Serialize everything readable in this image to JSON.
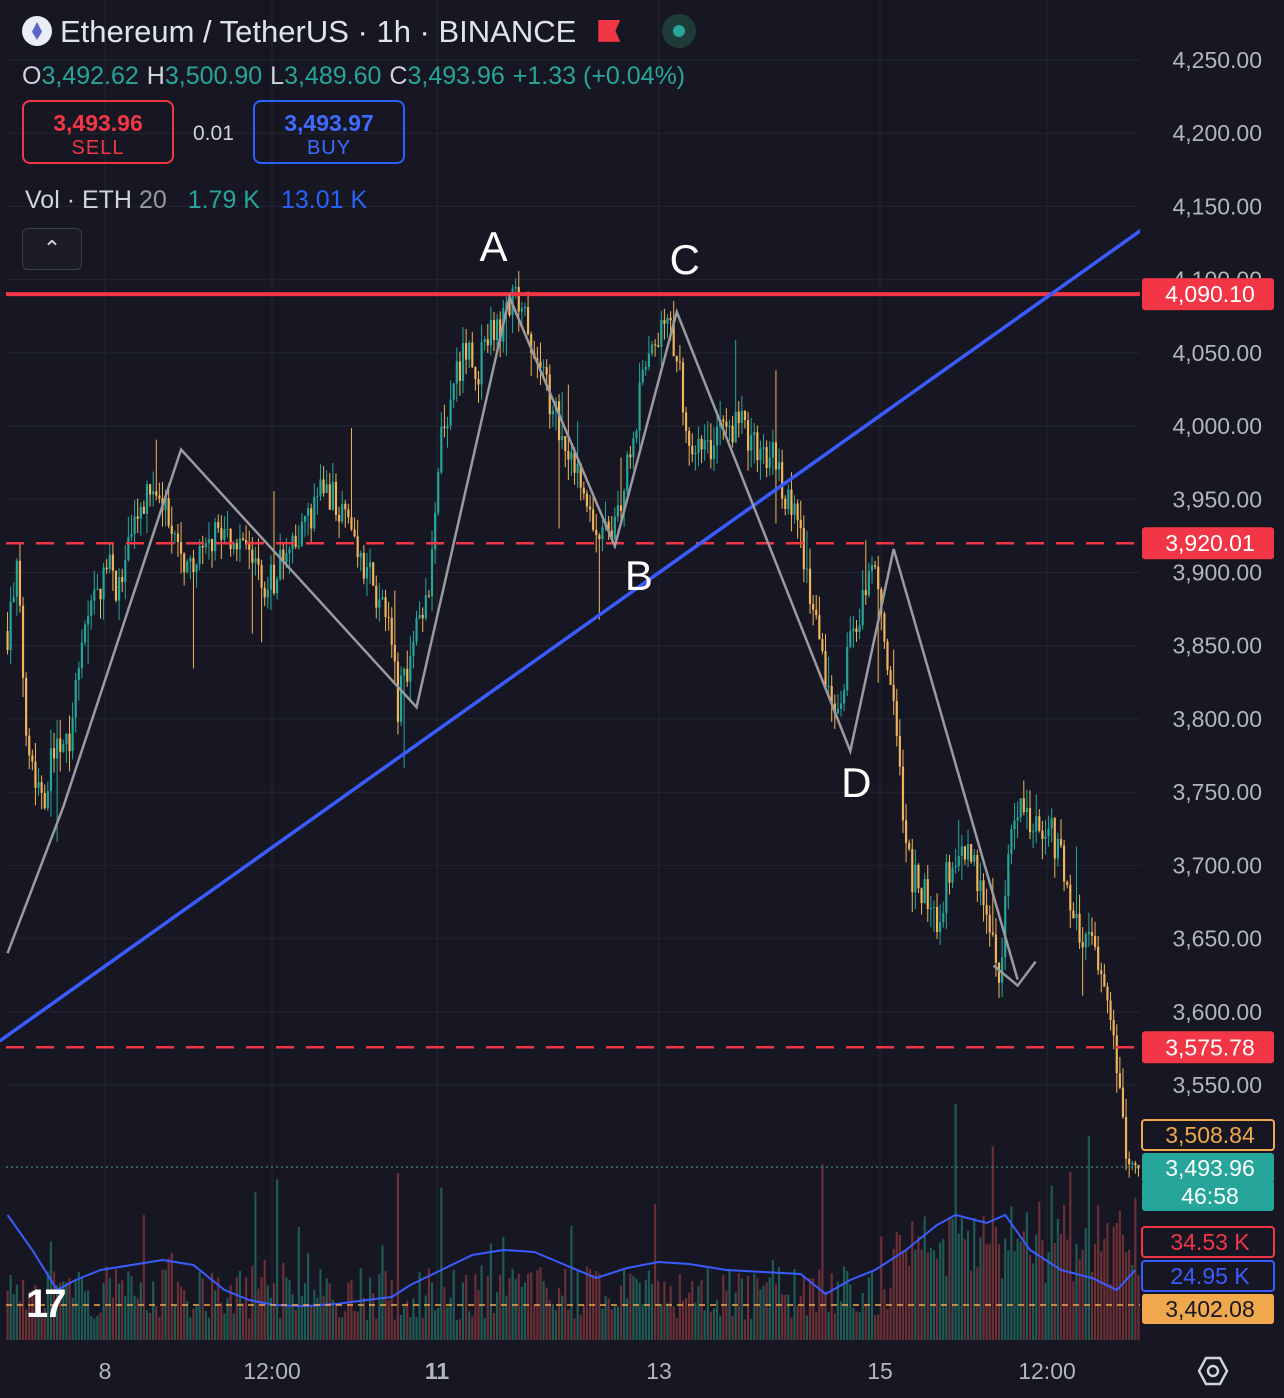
{
  "header": {
    "symbol_title": "Ethereum / TetherUS · 1h · BINANCE",
    "ohlc": {
      "o_label": "O",
      "o": "3,492.62",
      "h_label": "H",
      "h": "3,500.90",
      "l_label": "L",
      "l": "3,489.60",
      "c_label": "C",
      "c": "3,493.96",
      "change": "+1.33 (+0.04%)"
    },
    "sell": {
      "price": "3,493.96",
      "label": "SELL"
    },
    "spread": "0.01",
    "buy": {
      "price": "3,493.97",
      "label": "BUY"
    },
    "volume_legend": {
      "label": "Vol · ETH",
      "length": "20",
      "vol": "1.79 K",
      "ma": "13.01 K"
    },
    "collapse_icon": "chevron-up-icon",
    "brand_logo": "tradingview-logo-icon",
    "settings_icon": "gear-icon"
  },
  "colors": {
    "background": "#161722",
    "bull": "#26a69a",
    "bear": "#f0b45a",
    "resistance": "#f23645",
    "trendline": "#3a5cff",
    "pattern": "#9a9aa0",
    "volume_ma": "#3a5cff",
    "pattern_label": "#ffffff"
  },
  "chart_data": {
    "type": "candlestick",
    "title": "Ethereum / TetherUS · 1h · BINANCE",
    "x_ticks": [
      "8",
      "12:00",
      "11",
      "13",
      "15",
      "12:00"
    ],
    "y_ticks": [
      "3,550.00",
      "3,600.00",
      "3,650.00",
      "3,700.00",
      "3,750.00",
      "3,800.00",
      "3,850.00",
      "3,900.00",
      "3,950.00",
      "4,000.00",
      "4,050.00",
      "4,100.00",
      "4,150.00",
      "4,200.00",
      "4,250.00"
    ],
    "ylim": [
      3390,
      4265
    ],
    "grid": true,
    "price_path": [
      [
        0,
        3860
      ],
      [
        3,
        3900
      ],
      [
        6,
        3800
      ],
      [
        9,
        3760
      ],
      [
        12,
        3750
      ],
      [
        16,
        3790
      ],
      [
        20,
        3790
      ],
      [
        24,
        3860
      ],
      [
        28,
        3880
      ],
      [
        32,
        3905
      ],
      [
        36,
        3890
      ],
      [
        40,
        3920
      ],
      [
        44,
        3950
      ],
      [
        48,
        3950
      ],
      [
        52,
        3940
      ],
      [
        56,
        3910
      ],
      [
        60,
        3905
      ],
      [
        64,
        3915
      ],
      [
        68,
        3930
      ],
      [
        72,
        3925
      ],
      [
        76,
        3910
      ],
      [
        80,
        3905
      ],
      [
        84,
        3890
      ],
      [
        88,
        3905
      ],
      [
        92,
        3915
      ],
      [
        96,
        3930
      ],
      [
        100,
        3950
      ],
      [
        104,
        3955
      ],
      [
        108,
        3945
      ],
      [
        112,
        3920
      ],
      [
        116,
        3900
      ],
      [
        120,
        3880
      ],
      [
        124,
        3850
      ],
      [
        126,
        3810
      ],
      [
        128,
        3830
      ],
      [
        132,
        3860
      ],
      [
        136,
        3880
      ],
      [
        140,
        3990
      ],
      [
        144,
        4035
      ],
      [
        148,
        4050
      ],
      [
        152,
        4040
      ],
      [
        156,
        4060
      ],
      [
        160,
        4070
      ],
      [
        164,
        4085
      ],
      [
        168,
        4070
      ],
      [
        172,
        4040
      ],
      [
        176,
        4010
      ],
      [
        180,
        3990
      ],
      [
        184,
        3970
      ],
      [
        188,
        3940
      ],
      [
        192,
        3920
      ],
      [
        196,
        3930
      ],
      [
        200,
        3975
      ],
      [
        204,
        4020
      ],
      [
        208,
        4060
      ],
      [
        212,
        4070
      ],
      [
        216,
        4050
      ],
      [
        220,
        3990
      ],
      [
        224,
        3980
      ],
      [
        228,
        3990
      ],
      [
        232,
        4000
      ],
      [
        236,
        4000
      ],
      [
        240,
        3990
      ],
      [
        244,
        3985
      ],
      [
        248,
        3975
      ],
      [
        252,
        3950
      ],
      [
        256,
        3930
      ],
      [
        260,
        3870
      ],
      [
        264,
        3830
      ],
      [
        268,
        3800
      ],
      [
        272,
        3850
      ],
      [
        276,
        3880
      ],
      [
        280,
        3900
      ],
      [
        284,
        3840
      ],
      [
        288,
        3760
      ],
      [
        292,
        3690
      ],
      [
        296,
        3680
      ],
      [
        300,
        3660
      ],
      [
        304,
        3700
      ],
      [
        308,
        3710
      ],
      [
        312,
        3700
      ],
      [
        316,
        3660
      ],
      [
        320,
        3620
      ],
      [
        324,
        3720
      ],
      [
        328,
        3740
      ],
      [
        332,
        3730
      ],
      [
        336,
        3725
      ],
      [
        340,
        3710
      ],
      [
        344,
        3670
      ],
      [
        348,
        3650
      ],
      [
        352,
        3640
      ],
      [
        356,
        3600
      ],
      [
        358,
        3550
      ],
      [
        360,
        3530
      ],
      [
        362,
        3494
      ]
    ],
    "volume_ma_path": [
      [
        0,
        1215
      ],
      [
        8,
        1250
      ],
      [
        16,
        1290
      ],
      [
        22,
        1280
      ],
      [
        30,
        1270
      ],
      [
        40,
        1265
      ],
      [
        50,
        1260
      ],
      [
        60,
        1265
      ],
      [
        70,
        1290
      ],
      [
        78,
        1300
      ],
      [
        86,
        1305
      ],
      [
        96,
        1306
      ],
      [
        106,
        1304
      ],
      [
        116,
        1300
      ],
      [
        124,
        1297
      ],
      [
        130,
        1285
      ],
      [
        140,
        1270
      ],
      [
        150,
        1255
      ],
      [
        160,
        1250
      ],
      [
        170,
        1252
      ],
      [
        180,
        1265
      ],
      [
        190,
        1278
      ],
      [
        200,
        1268
      ],
      [
        210,
        1262
      ],
      [
        220,
        1264
      ],
      [
        232,
        1270
      ],
      [
        244,
        1272
      ],
      [
        256,
        1274
      ],
      [
        264,
        1294
      ],
      [
        272,
        1280
      ],
      [
        280,
        1270
      ],
      [
        290,
        1250
      ],
      [
        300,
        1225
      ],
      [
        306,
        1215
      ],
      [
        316,
        1223
      ],
      [
        322,
        1215
      ],
      [
        330,
        1250
      ],
      [
        340,
        1270
      ],
      [
        350,
        1278
      ],
      [
        358,
        1290
      ],
      [
        364,
        1270
      ]
    ],
    "levels": [
      {
        "price": 4090.1,
        "label": "4,090.10",
        "style": "solid",
        "color": "#f23645"
      },
      {
        "price": 3920.01,
        "label": "3,920.01",
        "style": "dashed",
        "color": "#f23645"
      },
      {
        "price": 3575.78,
        "label": "3,575.78",
        "style": "dashed",
        "color": "#f23645"
      }
    ],
    "price_tags": [
      {
        "label": "3,508.84",
        "bg": "#161722",
        "fg": "#f0a84c",
        "border": "#f0a84c",
        "y": 3508.84
      },
      {
        "label": "3,493.96",
        "bg": "#26a69a",
        "fg": "#ffffff",
        "y": 3493.96
      },
      {
        "label": "46:58",
        "bg": "#26a69a",
        "fg": "#ffffff",
        "y": 3474
      },
      {
        "label": "34.53 K",
        "bg": "#161722",
        "fg": "#f23645",
        "border": "#f23645",
        "y": 3435
      },
      {
        "label": "24.95 K",
        "bg": "#161722",
        "fg": "#3a5cff",
        "border": "#3a5cff",
        "y": 3412
      },
      {
        "label": "3,402.08",
        "bg": "#f0a84c",
        "fg": "#161722",
        "y": 3402.08
      }
    ],
    "trendline": {
      "p1": {
        "i": 0,
        "price": 3580
      },
      "p2": {
        "i": 370,
        "price": 4140
      }
    },
    "pattern_points": [
      {
        "i": 0,
        "price": 3640,
        "label": ""
      },
      {
        "i": 18,
        "price": 3740,
        "label": ""
      },
      {
        "i": 56,
        "price": 3984,
        "label": ""
      },
      {
        "i": 132,
        "price": 3808,
        "label": ""
      },
      {
        "i": 162,
        "price": 4088,
        "label": "A"
      },
      {
        "i": 196,
        "price": 3918,
        "label": "B"
      },
      {
        "i": 216,
        "price": 4078,
        "label": "C"
      },
      {
        "i": 272,
        "price": 3778,
        "label": "D"
      },
      {
        "i": 286,
        "price": 3916,
        "label": ""
      },
      {
        "i": 326,
        "price": 3622,
        "label": ""
      }
    ]
  }
}
